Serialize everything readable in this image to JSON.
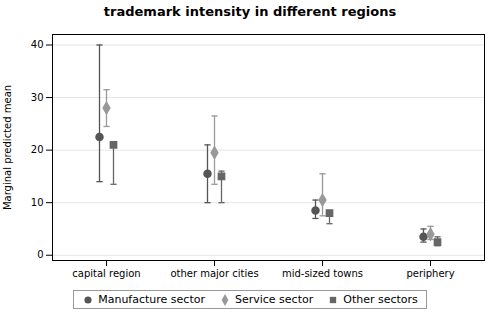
{
  "chart_data": {
    "type": "errorbar",
    "title": "trademark intensity in different regions",
    "ylabel": "Marginal predicted mean",
    "categories": [
      "capital region",
      "other major cities",
      "mid-sized towns",
      "periphery"
    ],
    "series": [
      {
        "name": "Manufacture sector",
        "color": "#555555",
        "marker": "circle",
        "values": [
          22.5,
          15.5,
          8.5,
          3.5
        ],
        "lower": [
          14.0,
          10.0,
          7.0,
          2.5
        ],
        "upper": [
          40.0,
          21.0,
          10.5,
          5.0
        ]
      },
      {
        "name": "Service sector",
        "color": "#999999",
        "marker": "diamond",
        "values": [
          28.0,
          19.5,
          10.5,
          4.0
        ],
        "lower": [
          24.5,
          13.5,
          7.5,
          3.0
        ],
        "upper": [
          31.5,
          26.5,
          15.5,
          5.5
        ]
      },
      {
        "name": "Other sectors",
        "color": "#666666",
        "marker": "square",
        "values": [
          21.0,
          15.0,
          8.0,
          2.5
        ],
        "lower": [
          13.5,
          10.0,
          6.0,
          1.8
        ],
        "upper": [
          21.5,
          16.0,
          8.5,
          3.5
        ]
      }
    ],
    "ylim": [
      -1,
      42
    ],
    "yticks": [
      0,
      10,
      20,
      30,
      40
    ],
    "grid": true,
    "legend": "bottom"
  }
}
